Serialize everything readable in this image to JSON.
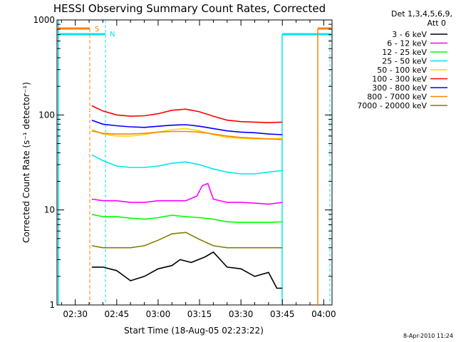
{
  "chart_data": {
    "type": "line",
    "title": "HESSI Observing Summary Count Rates, Corrected",
    "xlabel": "Start Time (18-Aug-05 02:23:22)",
    "ylabel": "Corrected Count Rate (s⁻¹ detector⁻¹)",
    "ylog": true,
    "ylim": [
      1,
      1000
    ],
    "xlim": [
      "02:23:22",
      "04:03:00"
    ],
    "xticks": [
      "02:30",
      "02:45",
      "03:00",
      "03:15",
      "03:30",
      "03:45",
      "04:00"
    ],
    "yticks": [
      "1",
      "10",
      "100",
      "1000"
    ],
    "legend_header": [
      "Det 1,3,4,5,6,9,",
      "Att 0"
    ],
    "legend_position": "right",
    "footer": "8-Apr-2010 11:24",
    "flags": {
      "s_label": "S",
      "n_label": "N",
      "saa_color": "#ff8000",
      "night_color": "#00e5ee"
    },
    "series": [
      {
        "name": "3 - 6 keV",
        "color": "#000000",
        "x": [
          "02:36",
          "02:40",
          "02:45",
          "02:50",
          "02:55",
          "03:00",
          "03:05",
          "03:08",
          "03:12",
          "03:17",
          "03:20",
          "03:25",
          "03:30",
          "03:35",
          "03:40",
          "03:43",
          "03:45"
        ],
        "y": [
          2.5,
          2.5,
          2.3,
          1.8,
          2.0,
          2.4,
          2.6,
          3.0,
          2.8,
          3.2,
          3.6,
          2.5,
          2.4,
          2.0,
          2.2,
          1.5,
          1.5
        ]
      },
      {
        "name": "6 - 12 keV",
        "color": "#ff00ff",
        "x": [
          "02:36",
          "02:40",
          "02:45",
          "02:50",
          "02:55",
          "03:00",
          "03:05",
          "03:10",
          "03:14",
          "03:16",
          "03:18",
          "03:20",
          "03:25",
          "03:30",
          "03:35",
          "03:40",
          "03:45"
        ],
        "y": [
          13,
          12.5,
          12.5,
          12,
          12,
          12.5,
          12.5,
          12.5,
          14,
          18,
          19,
          13,
          12,
          12,
          11.8,
          11.5,
          12
        ]
      },
      {
        "name": "12 - 25 keV",
        "color": "#00ff00",
        "x": [
          "02:36",
          "02:40",
          "02:45",
          "02:50",
          "02:55",
          "03:00",
          "03:05",
          "03:10",
          "03:15",
          "03:20",
          "03:25",
          "03:30",
          "03:35",
          "03:40",
          "03:45"
        ],
        "y": [
          9,
          8.5,
          8.5,
          8.2,
          8,
          8.3,
          8.8,
          8.5,
          8.3,
          8,
          7.5,
          7.4,
          7.4,
          7.4,
          7.5
        ]
      },
      {
        "name": "25 - 50 keV",
        "color": "#00e5ee",
        "x": [
          "02:36",
          "02:40",
          "02:45",
          "02:50",
          "02:55",
          "03:00",
          "03:05",
          "03:10",
          "03:15",
          "03:20",
          "03:25",
          "03:30",
          "03:35",
          "03:40",
          "03:45"
        ],
        "y": [
          38,
          33,
          29,
          28,
          28,
          29,
          31,
          32,
          30,
          27,
          25,
          24,
          24,
          25,
          26
        ]
      },
      {
        "name": "50 - 100 keV",
        "color": "#ffd700",
        "x": [
          "02:36",
          "02:40",
          "02:45",
          "02:50",
          "02:55",
          "03:00",
          "03:05",
          "03:10",
          "03:15",
          "03:20",
          "03:25",
          "03:30",
          "03:35",
          "03:40",
          "03:45"
        ],
        "y": [
          70,
          63,
          60,
          60,
          62,
          66,
          70,
          72,
          68,
          62,
          58,
          57,
          56,
          56,
          57
        ]
      },
      {
        "name": "100 - 300 keV",
        "color": "#ff0000",
        "x": [
          "02:36",
          "02:40",
          "02:45",
          "02:50",
          "02:55",
          "03:00",
          "03:05",
          "03:10",
          "03:15",
          "03:20",
          "03:25",
          "03:30",
          "03:35",
          "03:40",
          "03:45"
        ],
        "y": [
          125,
          110,
          100,
          97,
          98,
          103,
          112,
          115,
          108,
          97,
          88,
          85,
          84,
          83,
          84
        ]
      },
      {
        "name": "300 - 800 keV",
        "color": "#0000ff",
        "x": [
          "02:36",
          "02:40",
          "02:45",
          "02:50",
          "02:55",
          "03:00",
          "03:05",
          "03:10",
          "03:15",
          "03:20",
          "03:25",
          "03:30",
          "03:35",
          "03:40",
          "03:45"
        ],
        "y": [
          88,
          80,
          77,
          75,
          74,
          76,
          78,
          79,
          76,
          72,
          68,
          66,
          65,
          63,
          62
        ]
      },
      {
        "name": "800 - 7000 keV",
        "color": "#ff8000",
        "x": [
          "02:36",
          "02:40",
          "02:45",
          "02:50",
          "02:55",
          "03:00",
          "03:05",
          "03:10",
          "03:15",
          "03:20",
          "03:25",
          "03:30",
          "03:35",
          "03:40",
          "03:45"
        ],
        "y": [
          68,
          64,
          63,
          63,
          64,
          66,
          67,
          67,
          66,
          63,
          60,
          58,
          57,
          56,
          55
        ]
      },
      {
        "name": "7000 - 20000 keV",
        "color": "#808000",
        "x": [
          "02:36",
          "02:40",
          "02:45",
          "02:50",
          "02:55",
          "03:00",
          "03:05",
          "03:10",
          "03:15",
          "03:20",
          "03:25",
          "03:30",
          "03:35",
          "03:40",
          "03:45"
        ],
        "y": [
          4.2,
          4.0,
          4.0,
          4.0,
          4.2,
          4.8,
          5.6,
          5.8,
          4.9,
          4.2,
          4.0,
          4.0,
          4.0,
          4.0,
          4.0
        ]
      }
    ]
  }
}
